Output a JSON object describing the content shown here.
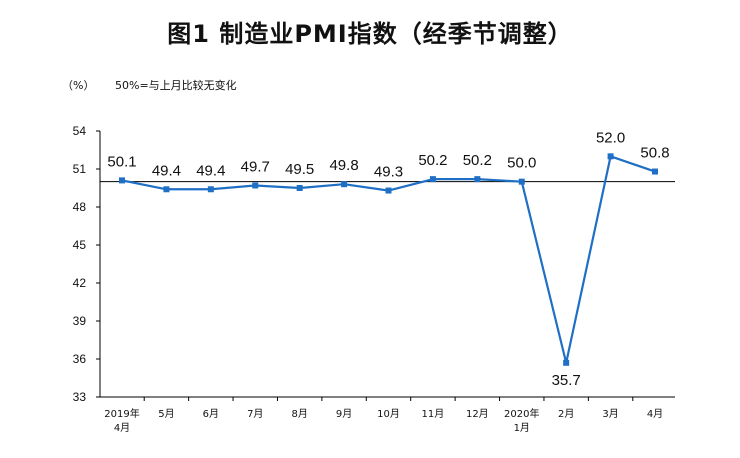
{
  "title": "图1  制造业PMI指数（经季节调整）",
  "unit": "（%）",
  "note": "50%=与上月比较无变化",
  "chart_data": {
    "type": "line",
    "title": "图1  制造业PMI指数（经季节调整）",
    "xlabel": "",
    "ylabel": "（%）",
    "ylim": [
      33,
      54
    ],
    "yticks": [
      33,
      36,
      39,
      42,
      45,
      48,
      51,
      54
    ],
    "reference_line": 50,
    "grid": false,
    "categories": [
      [
        "2019年",
        "4月"
      ],
      [
        "5月"
      ],
      [
        "6月"
      ],
      [
        "7月"
      ],
      [
        "8月"
      ],
      [
        "9月"
      ],
      [
        "10月"
      ],
      [
        "11月"
      ],
      [
        "12月"
      ],
      [
        "2020年",
        "1月"
      ],
      [
        "2月"
      ],
      [
        "3月"
      ],
      [
        "4月"
      ]
    ],
    "series": [
      {
        "values": [
          50.1,
          49.4,
          49.4,
          49.7,
          49.5,
          49.8,
          49.3,
          50.2,
          50.2,
          50.0,
          35.7,
          52.0,
          50.8
        ],
        "labels": [
          "50.1",
          "49.4",
          "49.4",
          "49.7",
          "49.5",
          "49.8",
          "49.3",
          "50.2",
          "50.2",
          "50.0",
          "35.7",
          "52.0",
          "50.8"
        ],
        "color": "#1f6fc5"
      }
    ]
  }
}
